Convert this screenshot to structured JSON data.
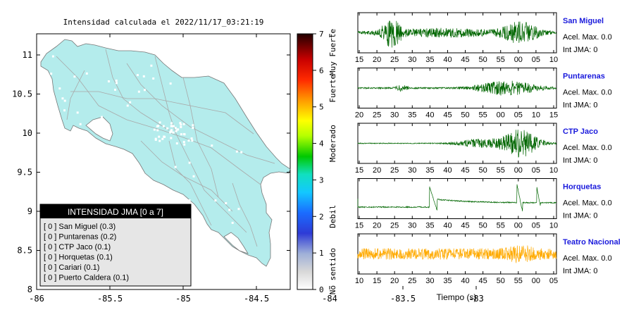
{
  "map": {
    "title": "Intensidad calculada el 2022/11/17_03:21:19",
    "x_ticks": [
      "-86",
      "-85.5",
      "-85",
      "-84.5",
      "-84",
      "-83.5",
      "-83"
    ],
    "y_ticks": [
      "8",
      "8.5",
      "9",
      "9.5",
      "10",
      "10.5",
      "11"
    ],
    "land_color": "#b4ecec",
    "border_color": "#888888"
  },
  "colorbar": {
    "ticks": [
      "0",
      "1",
      "2",
      "3",
      "4",
      "5",
      "6",
      "7"
    ],
    "levels": [
      {
        "label": "No sentido",
        "from": 0,
        "to": 1
      },
      {
        "label": "Debil",
        "from": 1,
        "to": 3
      },
      {
        "label": "Moderado",
        "from": 3,
        "to": 5
      },
      {
        "label": "Fuerte",
        "from": 5,
        "to": 6
      },
      {
        "label": "Muy Fuerte",
        "from": 6,
        "to": 7
      }
    ]
  },
  "legend": {
    "title": "INTENSIDAD JMA [0 a 7]",
    "items": [
      "[ 0 ]  San Miguel (0.3)",
      "[ 0 ]  Puntarenas (0.2)",
      "[ 0 ]  CTP Jaco (0.1)",
      "[ 0 ]  Horquetas (0.1)",
      "[ 0 ]  Cariari (0.1)",
      "[ 0 ]  Puerto Caldera (0.1)"
    ]
  },
  "stations": [
    {
      "name": "San Miguel",
      "acel": "Acel. Max. 0.0",
      "int": "Int JMA: 0",
      "color": "#006600",
      "ticks": [
        "15",
        "20",
        "25",
        "30",
        "35",
        "40",
        "45",
        "50",
        "55",
        "00",
        "05",
        "10"
      ]
    },
    {
      "name": "Puntarenas",
      "acel": "Acel. Max. 0.0",
      "int": "Int JMA: 0",
      "color": "#006600",
      "ticks": [
        "20",
        "25",
        "30",
        "35",
        "40",
        "45",
        "50",
        "55",
        "00",
        "05",
        "10",
        "15"
      ]
    },
    {
      "name": "CTP Jaco",
      "acel": "Acel. Max. 0.0",
      "int": "Int JMA: 0",
      "color": "#006600",
      "ticks": [
        "15",
        "20",
        "25",
        "30",
        "35",
        "40",
        "45",
        "50",
        "55",
        "00",
        "05",
        "10"
      ]
    },
    {
      "name": "Horquetas",
      "acel": "Acel. Max. 0.0",
      "int": "Int JMA: 0",
      "color": "#006600",
      "ticks": [
        "15",
        "20",
        "25",
        "30",
        "35",
        "40",
        "45",
        "50",
        "55",
        "00",
        "05",
        "10"
      ]
    },
    {
      "name": "Teatro Nacional",
      "acel": "Acel. Max. 0.0",
      "int": "Int JMA: 0",
      "color": "#ffaa00",
      "ticks": [
        "10",
        "15",
        "20",
        "25",
        "30",
        "35",
        "40",
        "45",
        "50",
        "55",
        "00",
        "05"
      ]
    }
  ],
  "x_axis_label": "Tiempo (s)"
}
